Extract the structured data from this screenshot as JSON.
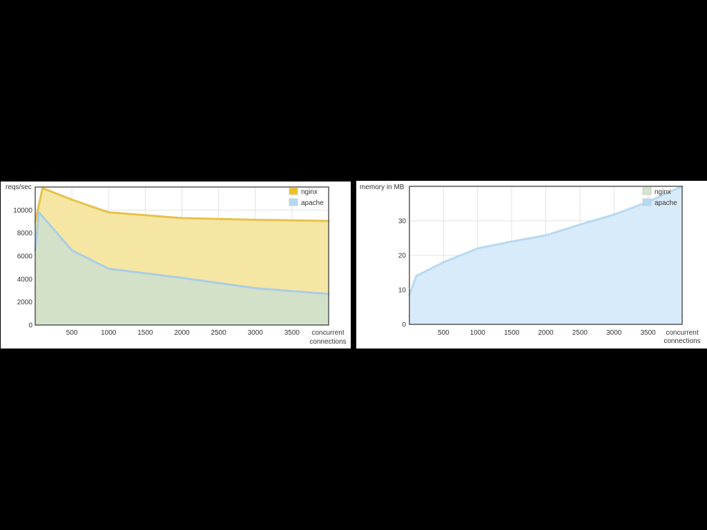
{
  "chart_data": [
    {
      "type": "area",
      "ylabel": "reqs/sec",
      "xlabel": [
        "concurrent",
        "connections"
      ],
      "xlim": [
        0,
        4000
      ],
      "ylim": [
        0,
        12000
      ],
      "x_ticks": [
        500,
        1000,
        1500,
        2000,
        2500,
        3000,
        3500
      ],
      "y_ticks": [
        0,
        2000,
        4000,
        6000,
        8000,
        10000
      ],
      "grid": true,
      "legend": "top-right",
      "series": [
        {
          "name": "nginx",
          "fill": "#f5e6a3",
          "line": "#e6c24a",
          "swatch": "#f0c020",
          "x": [
            0,
            100,
            500,
            1000,
            2000,
            3000,
            4000
          ],
          "y": [
            9000,
            11900,
            10900,
            9800,
            9300,
            9150,
            9050
          ]
        },
        {
          "name": "apache",
          "fill": "#d3e1c8",
          "line": "#a9cde6",
          "swatch": "#b2daf6",
          "x": [
            0,
            50,
            500,
            1000,
            2000,
            3000,
            4000
          ],
          "y": [
            6500,
            9800,
            6500,
            4900,
            4100,
            3200,
            2700
          ]
        }
      ]
    },
    {
      "type": "area",
      "ylabel": "memory in MB",
      "xlabel": [
        "concurrent",
        "connections"
      ],
      "xlim": [
        0,
        4000
      ],
      "ylim": [
        0,
        40
      ],
      "x_ticks": [
        500,
        1000,
        1500,
        2000,
        2500,
        3000,
        3500
      ],
      "y_ticks": [
        0,
        10,
        20,
        30
      ],
      "grid": true,
      "legend": "top-right",
      "series": [
        {
          "name": "nginx",
          "fill": "#d3e1c8",
          "line": "#c8d89a",
          "swatch": "#d6e6c8",
          "x": [
            0,
            4000
          ],
          "y": [
            2.5,
            2.5
          ]
        },
        {
          "name": "apache",
          "fill": "#d8ebfb",
          "line": "#b7d9f0",
          "swatch": "#b2daf6",
          "x": [
            0,
            100,
            500,
            1000,
            1500,
            2000,
            2500,
            3000,
            3500,
            4000
          ],
          "y": [
            8.5,
            14,
            18,
            22,
            24,
            25.8,
            28.9,
            31.8,
            35.5,
            40
          ]
        }
      ]
    }
  ]
}
